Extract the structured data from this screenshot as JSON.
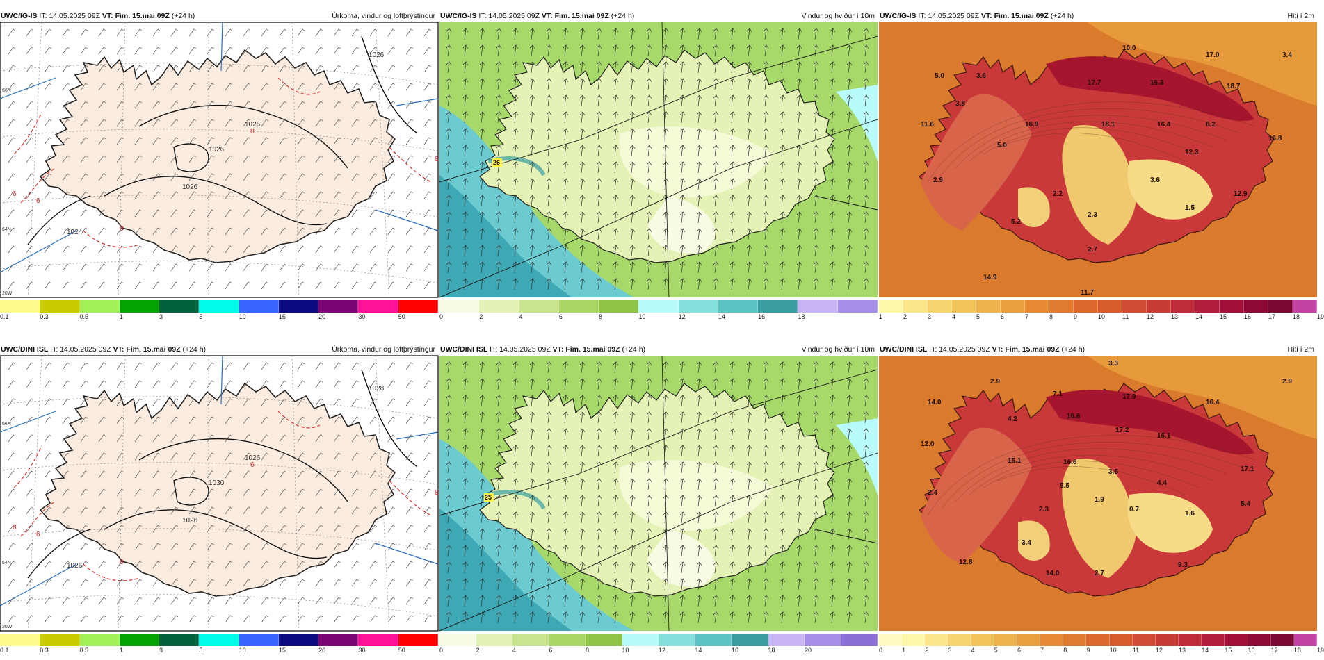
{
  "panels": [
    {
      "model": "UWC/IG-IS",
      "it_label": "IT:",
      "it_value": "14.05.2025 09Z",
      "vt_label": "VT:",
      "vt_value": "Fim. 15.mai 09Z",
      "lead": "(+24 h)",
      "title": "Úrkoma, vindur og loftþrýstingur",
      "kind": "precip",
      "colorbar": {
        "colors": [
          "#fffb8a",
          "#c9cd00",
          "#a4f05a",
          "#05a405",
          "#03623c",
          "#00fbe8",
          "#3a64ff",
          "#0b0a7e",
          "#7a0473",
          "#ff129a",
          "#ff0000"
        ],
        "ticks": [
          "0.1",
          "0.3",
          "0.5",
          "1",
          "3",
          "5",
          "10",
          "15",
          "20",
          "30",
          "50"
        ]
      },
      "isobar_labels": [
        "1026",
        "1026",
        "1026",
        "1024",
        "1026"
      ],
      "temp_labels": [
        "8",
        "8",
        "6",
        "6",
        "8"
      ],
      "side_labels": [
        "66N",
        "64N",
        "20W"
      ]
    },
    {
      "model": "UWC/IG-IS",
      "it_label": "IT:",
      "it_value": "14.05.2025 09Z",
      "vt_label": "VT:",
      "vt_value": "Fim. 15.mai 09Z",
      "lead": "(+24 h)",
      "title": "Vindur og hviður í 10m",
      "kind": "wind",
      "max_label": "26",
      "colorbar": {
        "colors": [
          "#f7fbe4",
          "#e3f3b8",
          "#c8e58e",
          "#a9d665",
          "#8fc447",
          "#b9fbfb",
          "#86e1dc",
          "#5cc4c2",
          "#3a9ea3",
          "#c7b5f5",
          "#a58fe6"
        ],
        "ticks": [
          "0",
          "2",
          "4",
          "6",
          "8",
          "10",
          "12",
          "14",
          "16",
          "18"
        ]
      }
    },
    {
      "model": "UWC/IG-IS",
      "it_label": "IT:",
      "it_value": "14.05.2025 09Z",
      "vt_label": "VT:",
      "vt_value": "Fim. 15.mai 09Z",
      "lead": "(+24 h)",
      "title": "Hiti í 2m",
      "kind": "temp",
      "point_values": [
        "10.0",
        "17.0",
        "3.4",
        "5.0",
        "3.6",
        "17.7",
        "16.3",
        "18.7",
        "3.8",
        "11.6",
        "16.9",
        "18.1",
        "16.4",
        "6.2",
        "5.0",
        "16.8",
        "12.3",
        "2.9",
        "3.6",
        "2.2",
        "12.9",
        "1.5",
        "5.2",
        "2.3",
        "2.7",
        "14.9",
        "11.7"
      ],
      "colorbar": {
        "colors": [
          "#fff7a8",
          "#fbe58a",
          "#f6d571",
          "#f2c55c",
          "#eeb34c",
          "#ea9f3e",
          "#e68b34",
          "#e07a2e",
          "#db6a2c",
          "#d65c2e",
          "#d04c34",
          "#c83c36",
          "#bd2c38",
          "#b01c39",
          "#a01038",
          "#8e0a36",
          "#7a0834",
          "#c243a4"
        ],
        "ticks": [
          "1",
          "2",
          "3",
          "4",
          "5",
          "6",
          "7",
          "8",
          "9",
          "10",
          "11",
          "12",
          "13",
          "14",
          "15",
          "16",
          "17",
          "18",
          "19"
        ]
      }
    },
    {
      "model": "UWC/DINI ISL",
      "it_label": "IT:",
      "it_value": "14.05.2025 09Z",
      "vt_label": "VT:",
      "vt_value": "Fim. 15.mai 09Z",
      "lead": "(+24 h)",
      "title": "Úrkoma, vindur og loftþrýstingur",
      "kind": "precip",
      "colorbar": {
        "colors": [
          "#fffb8a",
          "#c9cd00",
          "#a4f05a",
          "#05a405",
          "#03623c",
          "#00fbe8",
          "#3a64ff",
          "#0b0a7e",
          "#7a0473",
          "#ff129a",
          "#ff0000"
        ],
        "ticks": [
          "0.1",
          "0.3",
          "0.5",
          "1",
          "3",
          "5",
          "10",
          "15",
          "20",
          "30",
          "50"
        ]
      },
      "isobar_labels": [
        "1026",
        "1026",
        "1028",
        "1026",
        "1030"
      ],
      "temp_labels": [
        "6",
        "8",
        "8",
        "6",
        "8"
      ],
      "side_labels": [
        "66N",
        "64N",
        "20W"
      ]
    },
    {
      "model": "UWC/DINI ISL",
      "it_label": "IT:",
      "it_value": "14.05.2025 09Z",
      "vt_label": "VT:",
      "vt_value": "Fim. 15.mai 09Z",
      "lead": "(+24 h)",
      "title": "Vindur og hviður í 10m",
      "kind": "wind",
      "max_label": "25",
      "colorbar": {
        "colors": [
          "#f7fbe4",
          "#e3f3b8",
          "#c8e58e",
          "#a9d665",
          "#8fc447",
          "#b9fbfb",
          "#86e1dc",
          "#5cc4c2",
          "#3a9ea3",
          "#c7b5f5",
          "#a58fe6",
          "#8a6fd6"
        ],
        "ticks": [
          "0",
          "2",
          "4",
          "6",
          "8",
          "10",
          "12",
          "14",
          "16",
          "18",
          "20"
        ]
      }
    },
    {
      "model": "UWC/DINI ISL",
      "it_label": "IT:",
      "it_value": "14.05.2025 09Z",
      "vt_label": "VT:",
      "vt_value": "Fim. 15.mai 09Z",
      "lead": "(+24 h)",
      "title": "Hiti í 2m",
      "kind": "temp",
      "point_values": [
        "3.3",
        "2.9",
        "2.9",
        "14.0",
        "7.1",
        "17.9",
        "16.4",
        "4.2",
        "16.6",
        "12.0",
        "17.2",
        "16.1",
        "15.1",
        "16.6",
        "3.5",
        "17.1",
        "5.5",
        "4.4",
        "2.4",
        "2.3",
        "1.9",
        "0.7",
        "1.6",
        "5.4",
        "3.4",
        "12.8",
        "14.0",
        "2.7",
        "9.3"
      ],
      "colorbar": {
        "colors": [
          "#fffbc0",
          "#fff7a8",
          "#fbe58a",
          "#f6d571",
          "#f2c55c",
          "#eeb34c",
          "#ea9f3e",
          "#e68b34",
          "#e07a2e",
          "#db6a2c",
          "#d65c2e",
          "#d04c34",
          "#c83c36",
          "#bd2c38",
          "#b01c39",
          "#a01038",
          "#8e0a36",
          "#7a0834",
          "#c243a4"
        ],
        "ticks": [
          "0",
          "1",
          "2",
          "3",
          "4",
          "5",
          "6",
          "7",
          "8",
          "9",
          "10",
          "11",
          "12",
          "13",
          "14",
          "15",
          "16",
          "17",
          "18",
          "19"
        ]
      }
    }
  ]
}
